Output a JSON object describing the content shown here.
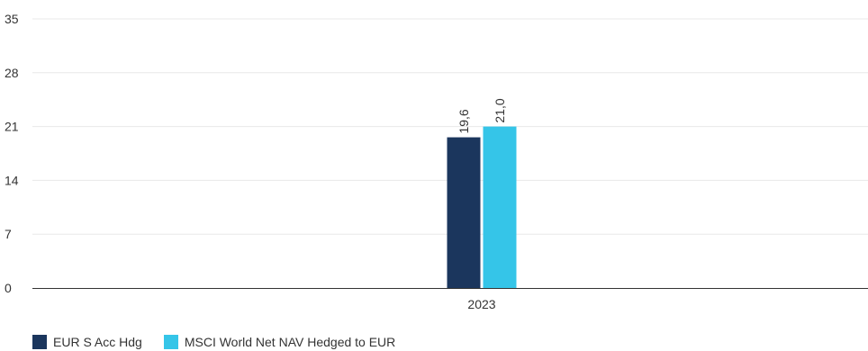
{
  "chart_data": {
    "type": "bar",
    "categories": [
      "2023"
    ],
    "series": [
      {
        "name": "EUR S Acc Hdg",
        "values": [
          19.6
        ],
        "labels": [
          "19,6"
        ],
        "color": "#1b365d"
      },
      {
        "name": "MSCI World Net NAV Hedged to EUR",
        "values": [
          21.0
        ],
        "labels": [
          "21,0"
        ],
        "color": "#35c5e8"
      }
    ],
    "ylim": [
      0,
      35
    ],
    "yticks": [
      0,
      7,
      14,
      21,
      28,
      35
    ],
    "ytick_labels": [
      "0",
      "7",
      "14",
      "21",
      "28",
      "35"
    ],
    "grid": true,
    "legend": "bottom-left",
    "title": "",
    "xlabel": "",
    "ylabel": ""
  }
}
